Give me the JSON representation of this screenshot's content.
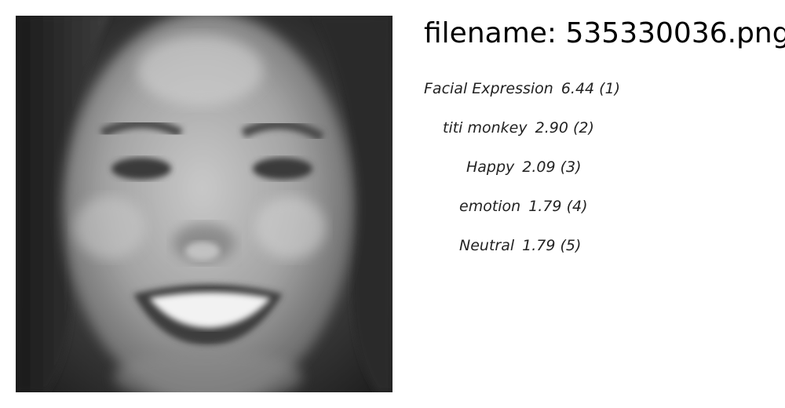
{
  "image": {
    "description_icon": "grayscale-face-photo"
  },
  "filename_label": "filename: 535330036.png",
  "predictions": [
    {
      "label": "Facial Expression",
      "score": "6.44 (1)"
    },
    {
      "label": "titi monkey",
      "score": "2.90 (2)"
    },
    {
      "label": "Happy",
      "score": "2.09 (3)"
    },
    {
      "label": "emotion",
      "score": "1.79 (4)"
    },
    {
      "label": "Neutral",
      "score": "1.79 (5)"
    }
  ]
}
